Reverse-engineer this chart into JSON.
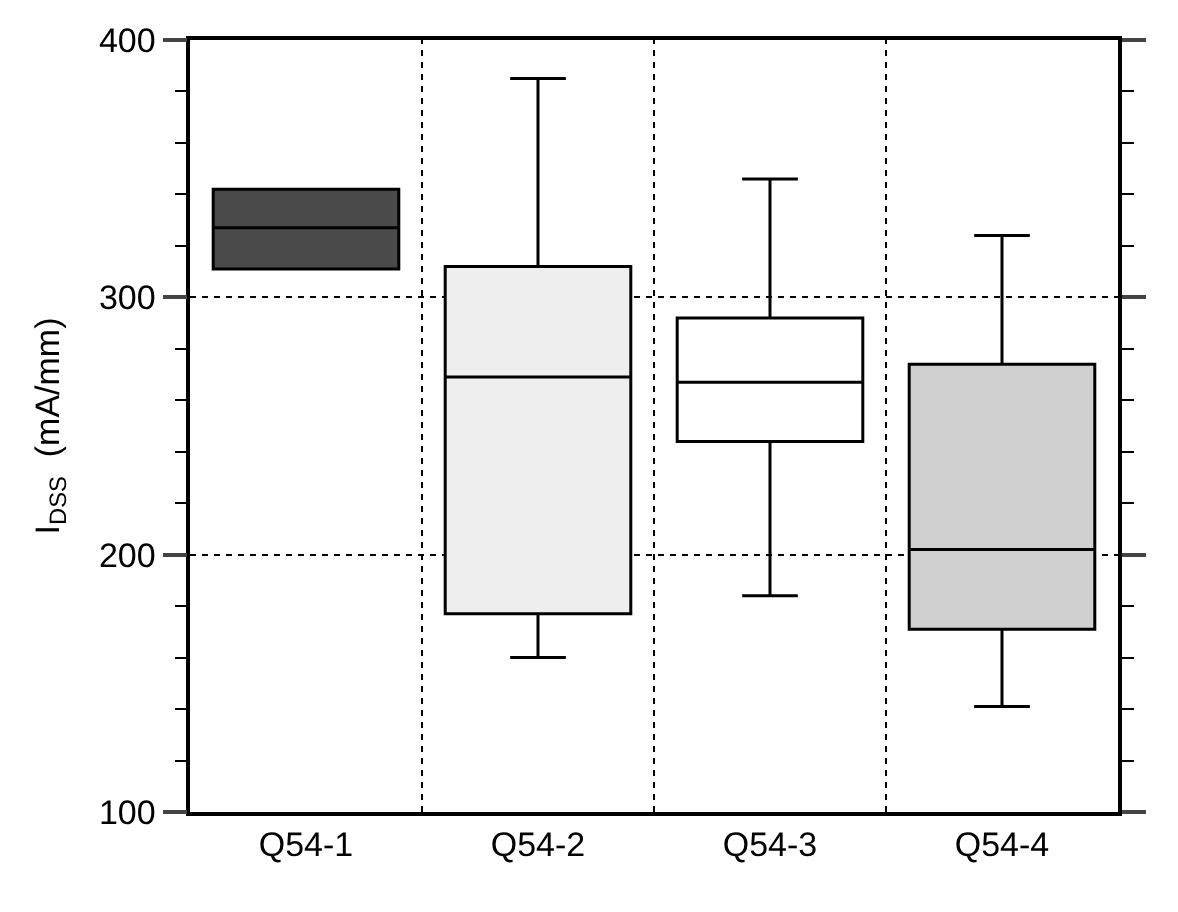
{
  "chart_data": {
    "type": "box",
    "ylabel": "I$_{DSS}$  (mA/mm)",
    "categories": [
      "Q54-1",
      "Q54-2",
      "Q54-3",
      "Q54-4"
    ],
    "boxes": [
      {
        "low": 311,
        "q1": 311,
        "median": 327,
        "q3": 342,
        "high": 342
      },
      {
        "low": 160,
        "q1": 177,
        "median": 269,
        "q3": 312,
        "high": 385
      },
      {
        "low": 184,
        "q1": 244,
        "median": 267,
        "q3": 292,
        "high": 346
      },
      {
        "low": 141,
        "q1": 171,
        "median": 202,
        "q3": 274,
        "high": 324
      }
    ],
    "colors": [
      "#4a4a4a",
      "#eeeeee",
      "#ffffff",
      "#d0d0d0"
    ],
    "ylim": [
      100,
      400
    ],
    "yticks": [
      100,
      200,
      300,
      400
    ],
    "grid": true,
    "legend": false,
    "tick_labels": "y"
  }
}
